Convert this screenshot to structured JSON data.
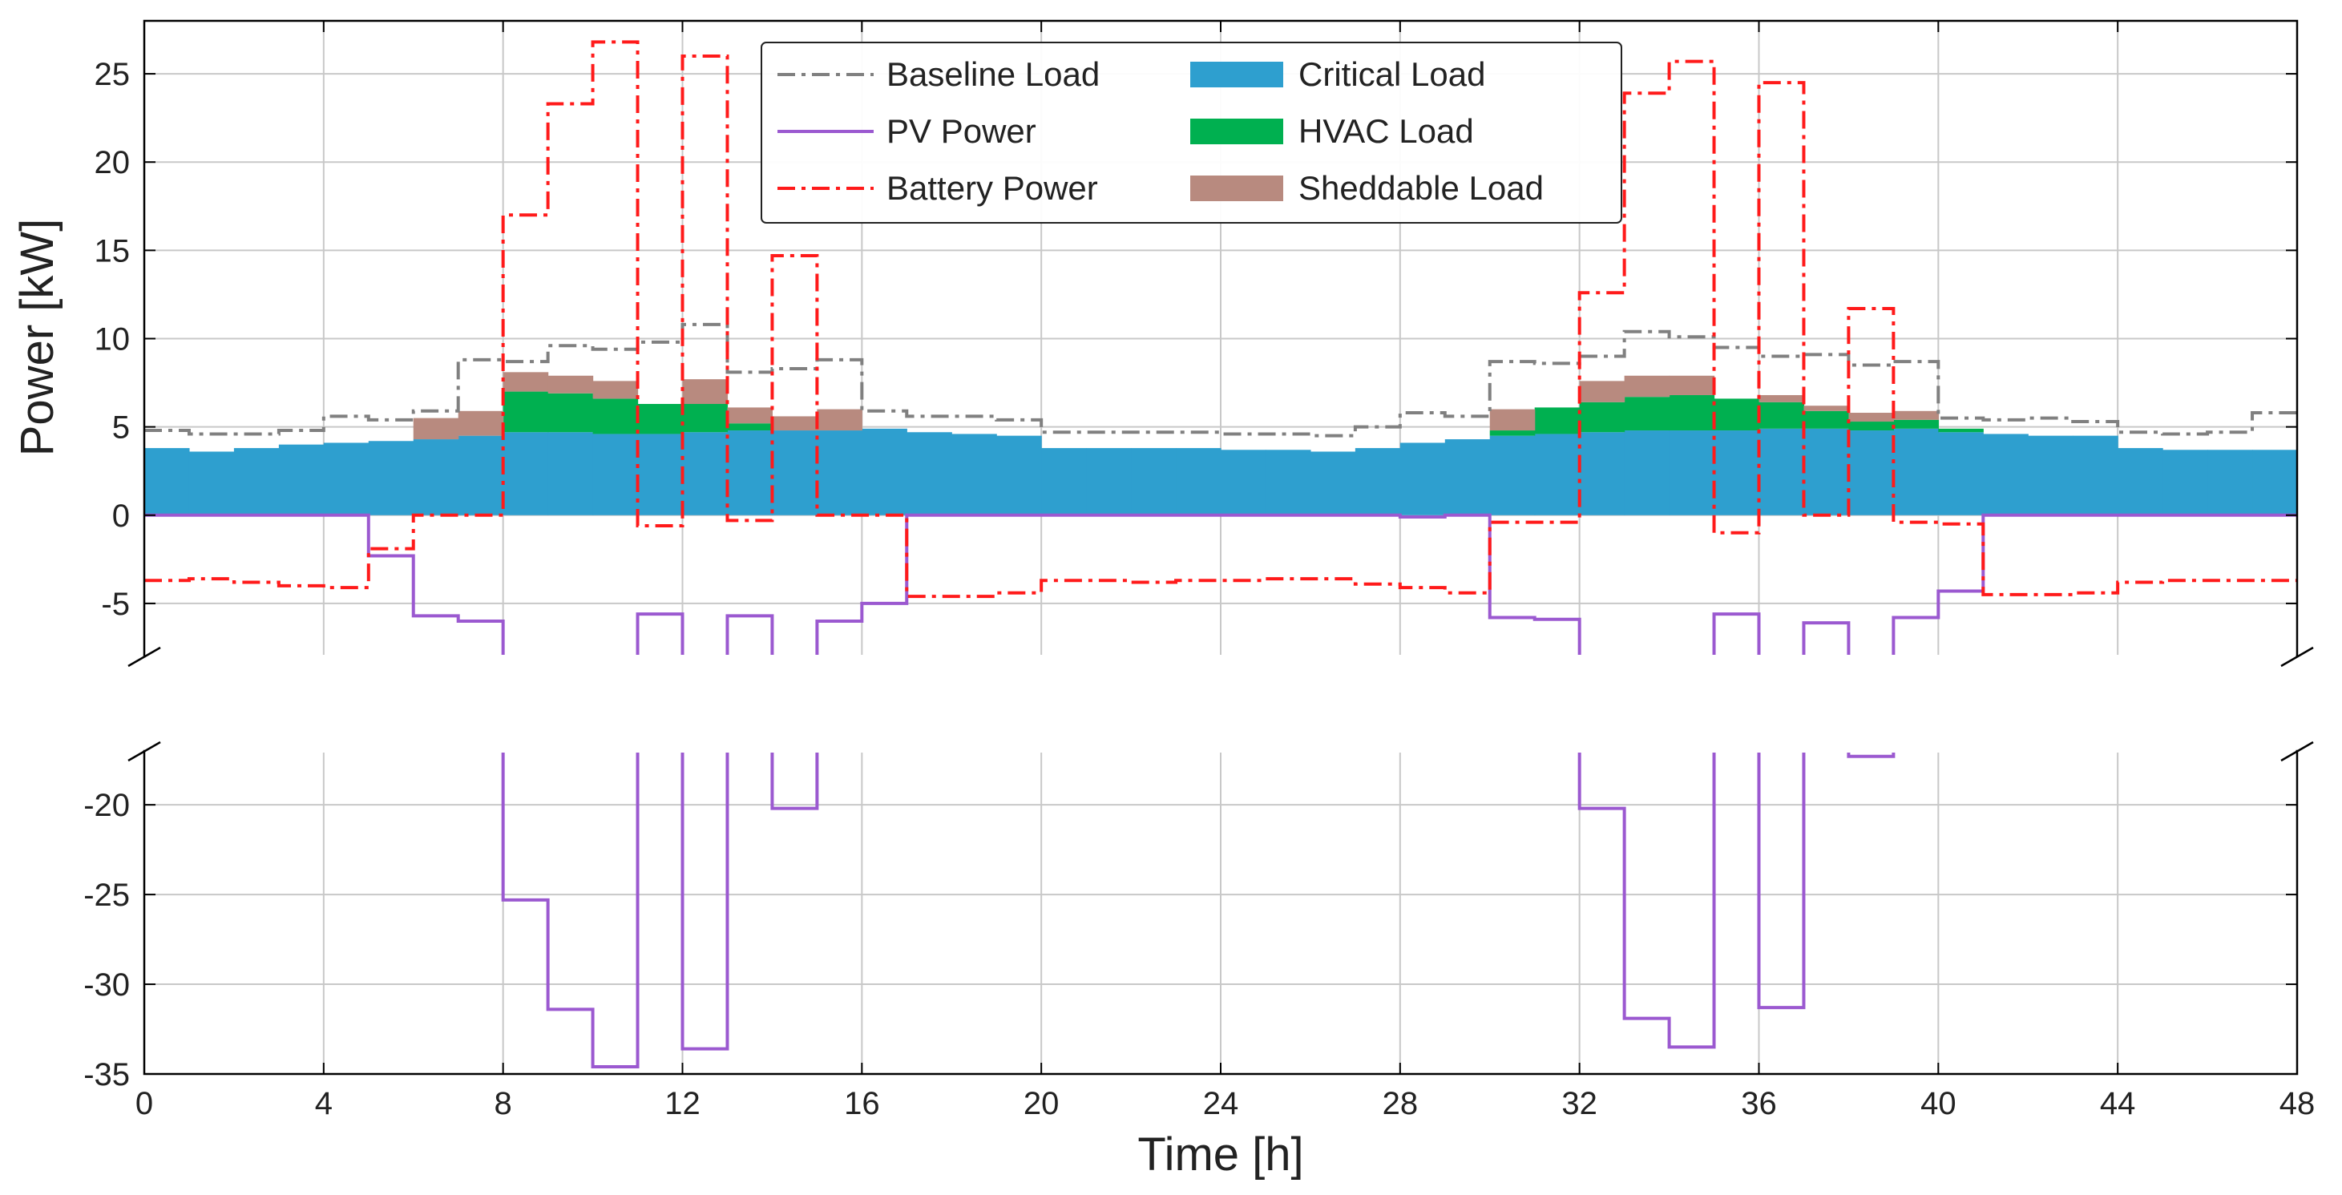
{
  "chart_data": {
    "type": "line",
    "title": "",
    "xlabel": "Time [h]",
    "ylabel": "Power [kW]",
    "xlim": [
      0,
      48
    ],
    "ylim_upper": [
      -8,
      28
    ],
    "ylim_lower": [
      -35,
      -17
    ],
    "broken_y_axis": true,
    "grid": true,
    "x_ticks": [
      "0",
      "4",
      "8",
      "12",
      "16",
      "20",
      "24",
      "28",
      "32",
      "36",
      "40",
      "44",
      "48"
    ],
    "y_ticks_upper": [
      "25",
      "20",
      "15",
      "10",
      "5",
      "0",
      "-5"
    ],
    "y_ticks_lower": [
      "-20",
      "-25",
      "-30",
      "-35"
    ],
    "hours": [
      0,
      1,
      2,
      3,
      4,
      5,
      6,
      7,
      8,
      9,
      10,
      11,
      12,
      13,
      14,
      15,
      16,
      17,
      18,
      19,
      20,
      21,
      22,
      23,
      24,
      25,
      26,
      27,
      28,
      29,
      30,
      31,
      32,
      33,
      34,
      35,
      36,
      37,
      38,
      39,
      40,
      41,
      42,
      43,
      44,
      45,
      46,
      47
    ],
    "legend": {
      "position": "top-center",
      "entries": [
        {
          "label": "Baseline Load",
          "color": "#808080",
          "style": "dashdot"
        },
        {
          "label": "PV Power",
          "color": "#9b59d0",
          "style": "solid"
        },
        {
          "label": "Battery Power",
          "color": "#ff1a1a",
          "style": "dashdot"
        },
        {
          "label": "Critical Load",
          "color": "#2e9fcf",
          "style": "area"
        },
        {
          "label": "HVAC Load",
          "color": "#00b050",
          "style": "area"
        },
        {
          "label": "Sheddable Load",
          "color": "#b88a7f",
          "style": "area"
        }
      ]
    },
    "series": [
      {
        "name": "Critical Load",
        "type": "stacked-area",
        "color": "#2e9fcf",
        "values": [
          3.8,
          3.6,
          3.8,
          4.0,
          4.1,
          4.2,
          4.3,
          4.5,
          4.7,
          4.7,
          4.6,
          4.6,
          4.7,
          4.8,
          4.8,
          4.8,
          4.9,
          4.7,
          4.6,
          4.5,
          3.8,
          3.8,
          3.8,
          3.8,
          3.7,
          3.7,
          3.6,
          3.8,
          4.1,
          4.3,
          4.5,
          4.6,
          4.7,
          4.8,
          4.8,
          4.8,
          4.9,
          4.9,
          4.8,
          4.9,
          4.7,
          4.6,
          4.5,
          4.5,
          3.8,
          3.7,
          3.7,
          3.7
        ]
      },
      {
        "name": "HVAC Load",
        "type": "stacked-area",
        "color": "#00b050",
        "values": [
          0,
          0,
          0,
          0,
          0,
          0,
          0,
          0,
          2.3,
          2.2,
          2.0,
          1.7,
          1.6,
          0.4,
          0,
          0,
          0,
          0,
          0,
          0,
          0,
          0,
          0,
          0,
          0,
          0,
          0,
          0,
          0,
          0,
          0.3,
          1.5,
          1.7,
          1.9,
          2.0,
          1.8,
          1.5,
          1.0,
          0.5,
          0.5,
          0.2,
          0,
          0,
          0,
          0,
          0,
          0,
          0
        ]
      },
      {
        "name": "Sheddable Load",
        "type": "stacked-area",
        "color": "#b88a7f",
        "values": [
          0,
          0,
          0,
          0,
          0,
          0,
          1.2,
          1.4,
          1.1,
          1.0,
          1.0,
          0,
          1.4,
          0.9,
          0.8,
          1.2,
          0,
          0,
          0,
          0,
          0,
          0,
          0,
          0,
          0,
          0,
          0,
          0,
          0,
          0,
          1.2,
          0,
          1.2,
          1.2,
          1.1,
          0,
          0.4,
          0.3,
          0.5,
          0.5,
          0,
          0,
          0,
          0,
          0,
          0,
          0,
          0
        ]
      },
      {
        "name": "Baseline Load",
        "type": "step",
        "color": "#808080",
        "style": "dashdot",
        "values": [
          4.8,
          4.6,
          4.6,
          4.8,
          5.6,
          5.4,
          5.9,
          8.8,
          8.7,
          9.6,
          9.4,
          9.8,
          10.8,
          8.1,
          8.3,
          8.8,
          5.9,
          5.6,
          5.6,
          5.4,
          4.7,
          4.7,
          4.7,
          4.7,
          4.6,
          4.6,
          4.5,
          5.0,
          5.8,
          5.6,
          8.7,
          8.6,
          9.0,
          10.4,
          10.1,
          9.5,
          9.0,
          9.1,
          8.5,
          8.7,
          5.5,
          5.4,
          5.5,
          5.3,
          4.7,
          4.6,
          4.7,
          5.8
        ]
      },
      {
        "name": "PV Power",
        "type": "step",
        "color": "#9b59d0",
        "style": "solid",
        "values": [
          0,
          0,
          0,
          0,
          0,
          -2.3,
          -5.7,
          -6.0,
          -25.3,
          -31.4,
          -34.6,
          -5.6,
          -33.6,
          -5.7,
          -20.2,
          -6.0,
          -5.0,
          0,
          0,
          0,
          0,
          0,
          0,
          0,
          0,
          0,
          0,
          0,
          -0.1,
          0,
          -5.8,
          -5.9,
          -20.2,
          -31.9,
          -33.5,
          -5.6,
          -31.3,
          -6.1,
          -17.3,
          -5.8,
          -4.3,
          0,
          0,
          0,
          0,
          0,
          0,
          0
        ]
      },
      {
        "name": "Battery Power",
        "type": "step",
        "color": "#ff1a1a",
        "style": "dashdot",
        "values": [
          -3.7,
          -3.6,
          -3.8,
          -4.0,
          -4.1,
          -1.9,
          0,
          0,
          17.0,
          23.3,
          26.8,
          -0.6,
          26.0,
          -0.3,
          14.7,
          0,
          0,
          -4.6,
          -4.6,
          -4.4,
          -3.7,
          -3.7,
          -3.8,
          -3.7,
          -3.7,
          -3.6,
          -3.6,
          -3.9,
          -4.1,
          -4.4,
          -0.4,
          -0.4,
          12.6,
          23.9,
          25.7,
          -1.0,
          24.5,
          0,
          11.7,
          -0.4,
          -0.5,
          -4.5,
          -4.5,
          -4.4,
          -3.8,
          -3.7,
          -3.7,
          -3.7
        ]
      }
    ]
  }
}
